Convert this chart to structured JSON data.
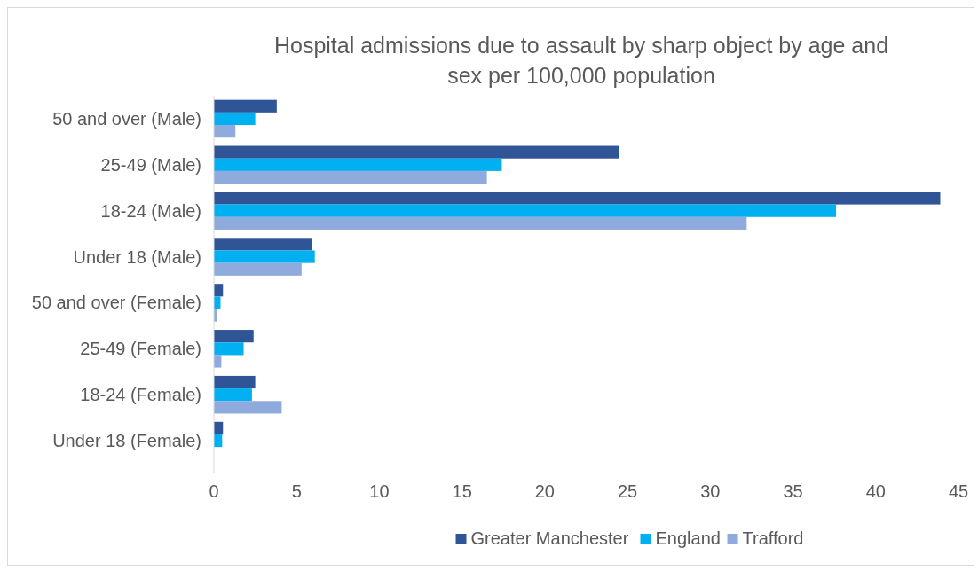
{
  "chart_data": {
    "type": "bar",
    "orientation": "horizontal",
    "title": "Hospital admissions due to assault by sharp object by age and sex per 100,000 population",
    "categories": [
      "50 and over (Male)",
      "25-49 (Male)",
      "18-24 (Male)",
      "Under 18 (Male)",
      "50 and over (Female)",
      "25-49 (Female)",
      "18-24 (Female)",
      "Under 18 (Female)"
    ],
    "series": [
      {
        "name": "Greater Manchester",
        "color": "#2f5597",
        "values": [
          3.8,
          24.5,
          43.9,
          5.9,
          0.55,
          2.4,
          2.5,
          0.55
        ]
      },
      {
        "name": "England",
        "color": "#00b0f0",
        "values": [
          2.5,
          17.4,
          37.6,
          6.1,
          0.4,
          1.8,
          2.3,
          0.5
        ]
      },
      {
        "name": "Trafford",
        "color": "#8faadc",
        "values": [
          1.3,
          16.5,
          32.2,
          5.3,
          0.2,
          0.45,
          4.1,
          null
        ]
      }
    ],
    "xlim": [
      0,
      45
    ],
    "xticks": [
      0,
      5,
      10,
      15,
      20,
      25,
      30,
      35,
      40,
      45
    ],
    "grid": false,
    "legend": "bottom"
  }
}
